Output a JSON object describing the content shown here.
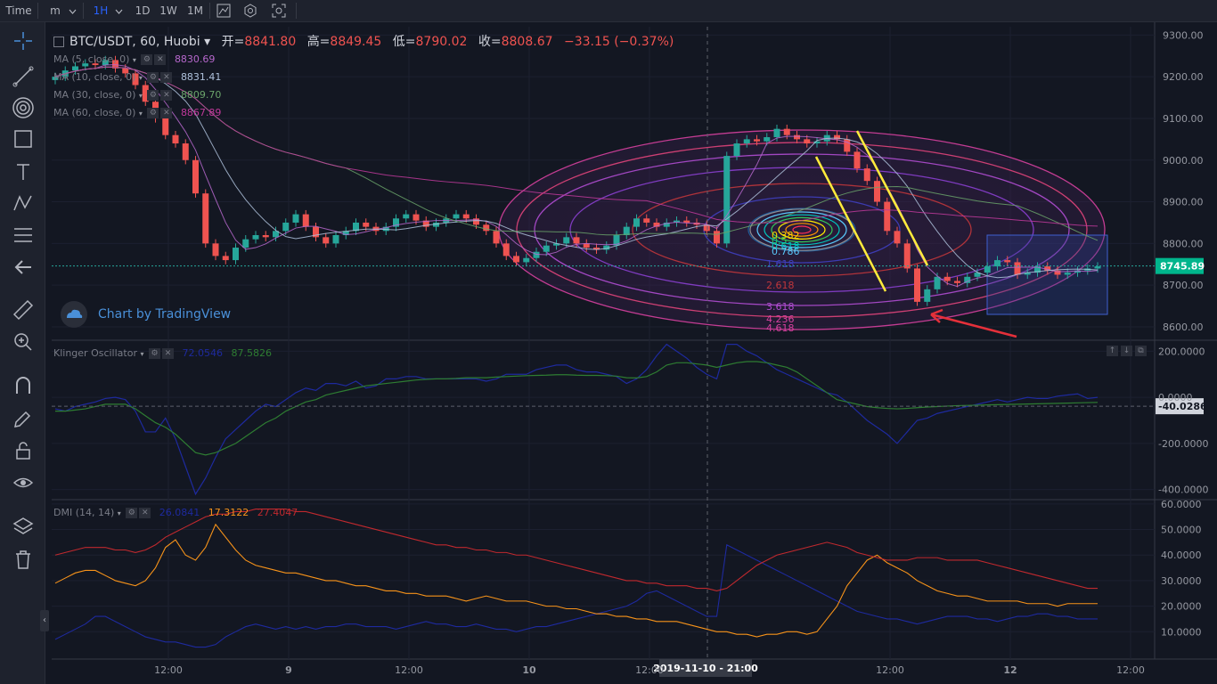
{
  "toolbar": {
    "time_label": "Time",
    "interval_menu": "m",
    "intervals": [
      "1H",
      "1D",
      "1W",
      "1M"
    ],
    "active_interval": "1H"
  },
  "symbol": {
    "name": "BTC/USDT, 60, Huobi",
    "open_label": "开=",
    "open": "8841.80",
    "high_label": "高=",
    "high": "8849.45",
    "low_label": "低=",
    "low": "8790.02",
    "close_label": "收=",
    "close": "8808.67",
    "change": "−33.15 (−0.37%)"
  },
  "ma_legends": [
    {
      "label": "MA (5, close, 0)",
      "value": "8830.69",
      "color": "#b667cc"
    },
    {
      "label": "MA (10, close, 0)",
      "value": "8831.41",
      "color": "#aec1db"
    },
    {
      "label": "MA (30, close, 0)",
      "value": "8809.70",
      "color": "#6aa36a"
    },
    {
      "label": "MA (60, close, 0)",
      "value": "8867.89",
      "color": "#c0399b"
    }
  ],
  "watermark": "Chart by TradingView",
  "klinger": {
    "name": "Klinger Oscillator",
    "v1": "72.0546",
    "v2": "87.5826"
  },
  "dmi": {
    "name": "DMI (14, 14)",
    "v1": "26.0841",
    "v2": "17.3122",
    "v3": "27.4047"
  },
  "crosshair_label": "2019-11-10 - 21:00",
  "fib_labels": [
    "0.382",
    "0.5",
    "0.618",
    "0.786",
    "1.618",
    "2.618",
    "3.618",
    "4.236",
    "4.618"
  ],
  "colors": {
    "up": "#26a69a",
    "down": "#ef5350",
    "bg": "#131722",
    "price_line": "#26a69a",
    "price_tag": "#00b58c"
  },
  "chart_data": [
    {
      "type": "candlestick",
      "title": "BTC/USDT, 60, Huobi",
      "x_ticks": [
        "12:00",
        "9",
        "12:00",
        "10",
        "12:00",
        "12:00",
        "12",
        "12:00"
      ],
      "y_ticks": [
        "9300.00",
        "9200.00",
        "9100.00",
        "9000.00",
        "8900.00",
        "8800.00",
        "8700.00",
        "8600.00"
      ],
      "ylim": [
        8570,
        9320
      ],
      "last_price": "8745.89",
      "closes": [
        9200,
        9215,
        9225,
        9232,
        9228,
        9240,
        9220,
        9208,
        9180,
        9140,
        9100,
        9060,
        9040,
        9000,
        8920,
        8800,
        8770,
        8760,
        8790,
        8810,
        8820,
        8815,
        8830,
        8850,
        8870,
        8840,
        8815,
        8800,
        8820,
        8830,
        8850,
        8840,
        8830,
        8840,
        8860,
        8870,
        8855,
        8840,
        8850,
        8860,
        8870,
        8860,
        8845,
        8830,
        8800,
        8770,
        8755,
        8765,
        8780,
        8795,
        8800,
        8815,
        8800,
        8790,
        8785,
        8795,
        8820,
        8840,
        8860,
        8850,
        8840,
        8850,
        8855,
        8850,
        8845,
        8830,
        8800,
        9010,
        9040,
        9050,
        9045,
        9055,
        9075,
        9060,
        9050,
        9040,
        9045,
        9060,
        9050,
        9020,
        8980,
        8950,
        8900,
        8830,
        8800,
        8740,
        8660,
        8690,
        8720,
        8710,
        8705,
        8720,
        8730,
        8745,
        8760,
        8755,
        8725,
        8730,
        8745,
        8735,
        8725,
        8730,
        8735,
        8740,
        8745
      ],
      "ma_periods": [
        5,
        10,
        30,
        60
      ]
    },
    {
      "type": "line",
      "title": "Klinger Oscillator",
      "y_ticks": [
        "200.0000",
        "0.0000",
        "-200.0000",
        "-400.0000"
      ],
      "ylim": [
        -440,
        240
      ],
      "current_label": "-40.0286",
      "series": [
        {
          "name": "Klinger",
          "color": "#1e2a9e",
          "values": [
            -50,
            -60,
            -40,
            -30,
            -20,
            -5,
            0,
            -10,
            -60,
            -150,
            -150,
            -90,
            -180,
            -300,
            -420,
            -350,
            -260,
            -180,
            -140,
            -100,
            -60,
            -30,
            -40,
            -10,
            20,
            40,
            30,
            60,
            60,
            50,
            70,
            40,
            50,
            80,
            80,
            90,
            90,
            80,
            80,
            80,
            80,
            80,
            80,
            70,
            80,
            100,
            100,
            100,
            120,
            130,
            140,
            140,
            120,
            110,
            110,
            100,
            90,
            60,
            80,
            120,
            180,
            230,
            200,
            170,
            130,
            100,
            80,
            230,
            230,
            200,
            180,
            150,
            120,
            100,
            80,
            60,
            40,
            20,
            10,
            -20,
            -60,
            -100,
            -130,
            -160,
            -200,
            -150,
            -100,
            -90,
            -70,
            -60,
            -50,
            -40,
            -30,
            -20,
            -10,
            -20,
            -10,
            0,
            -5,
            -5,
            5,
            10,
            15,
            -5,
            0
          ]
        },
        {
          "name": "Signal",
          "color": "#2e7d32",
          "values": [
            -60,
            -60,
            -55,
            -50,
            -40,
            -30,
            -30,
            -30,
            -50,
            -80,
            -110,
            -130,
            -160,
            -200,
            -240,
            -250,
            -240,
            -220,
            -200,
            -170,
            -140,
            -110,
            -90,
            -60,
            -40,
            -20,
            -10,
            10,
            20,
            30,
            40,
            50,
            55,
            60,
            65,
            70,
            75,
            78,
            80,
            80,
            82,
            85,
            85,
            85,
            88,
            90,
            92,
            94,
            95,
            96,
            98,
            98,
            96,
            95,
            95,
            94,
            92,
            85,
            84,
            90,
            110,
            140,
            150,
            150,
            145,
            140,
            130,
            140,
            150,
            155,
            155,
            150,
            140,
            130,
            110,
            80,
            50,
            20,
            -10,
            -20,
            -30,
            -40,
            -45,
            -48,
            -50,
            -48,
            -45,
            -42,
            -40,
            -38,
            -36,
            -35,
            -34,
            -33,
            -32,
            -31,
            -30,
            -29,
            -28,
            -27,
            -26,
            -25,
            -24,
            -23,
            -22
          ]
        }
      ]
    },
    {
      "type": "line",
      "title": "DMI (14, 14)",
      "y_ticks": [
        "60.0000",
        "50.0000",
        "40.0000",
        "30.0000",
        "20.0000",
        "10.0000"
      ],
      "ylim": [
        0,
        61
      ],
      "series": [
        {
          "name": "+DI",
          "color": "#1e2a9e",
          "values": [
            7,
            9,
            11,
            13,
            16,
            16,
            14,
            12,
            10,
            8,
            7,
            6,
            6,
            5,
            4,
            4,
            5,
            8,
            10,
            12,
            13,
            12,
            11,
            12,
            11,
            12,
            11,
            12,
            12,
            13,
            13,
            12,
            12,
            12,
            11,
            12,
            13,
            14,
            13,
            13,
            12,
            12,
            13,
            12,
            11,
            11,
            10,
            11,
            12,
            12,
            13,
            14,
            15,
            16,
            17,
            18,
            19,
            20,
            22,
            25,
            26,
            24,
            22,
            20,
            18,
            16,
            16,
            44,
            42,
            40,
            38,
            36,
            34,
            32,
            30,
            28,
            26,
            24,
            22,
            20,
            18,
            17,
            16,
            15,
            15,
            14,
            13,
            14,
            15,
            16,
            16,
            16,
            15,
            15,
            14,
            15,
            16,
            16,
            17,
            17,
            16,
            16,
            15,
            15,
            15
          ]
        },
        {
          "name": "-DI",
          "color": "#f7931a",
          "values": [
            29,
            31,
            33,
            34,
            34,
            32,
            30,
            29,
            28,
            30,
            35,
            43,
            46,
            40,
            38,
            43,
            52,
            47,
            42,
            38,
            36,
            35,
            34,
            33,
            33,
            32,
            31,
            30,
            30,
            29,
            28,
            28,
            27,
            26,
            26,
            25,
            25,
            24,
            24,
            24,
            23,
            22,
            23,
            24,
            23,
            22,
            22,
            22,
            21,
            20,
            20,
            19,
            19,
            18,
            17,
            17,
            16,
            16,
            15,
            15,
            14,
            14,
            14,
            13,
            12,
            11,
            10,
            10,
            9,
            9,
            8,
            9,
            9,
            10,
            10,
            9,
            10,
            15,
            20,
            28,
            33,
            38,
            40,
            37,
            35,
            33,
            30,
            28,
            26,
            25,
            24,
            24,
            23,
            22,
            22,
            22,
            22,
            21,
            21,
            21,
            20,
            21,
            21,
            21,
            21
          ]
        },
        {
          "name": "ADX",
          "color": "#c0292e",
          "values": [
            40,
            41,
            42,
            43,
            43,
            43,
            42,
            42,
            41,
            42,
            44,
            47,
            49,
            51,
            53,
            55,
            56,
            56,
            57,
            57,
            58,
            58,
            58,
            58,
            57,
            57,
            56,
            55,
            54,
            53,
            52,
            51,
            50,
            49,
            48,
            47,
            46,
            45,
            44,
            44,
            43,
            43,
            42,
            42,
            41,
            41,
            40,
            40,
            39,
            38,
            37,
            36,
            35,
            34,
            33,
            32,
            31,
            30,
            30,
            29,
            29,
            28,
            28,
            28,
            27,
            27,
            26,
            27,
            30,
            33,
            36,
            38,
            40,
            41,
            42,
            43,
            44,
            45,
            44,
            43,
            41,
            40,
            39,
            38,
            38,
            38,
            39,
            39,
            39,
            38,
            38,
            38,
            38,
            37,
            36,
            35,
            34,
            33,
            32,
            31,
            30,
            29,
            28,
            27,
            27
          ]
        }
      ]
    }
  ]
}
